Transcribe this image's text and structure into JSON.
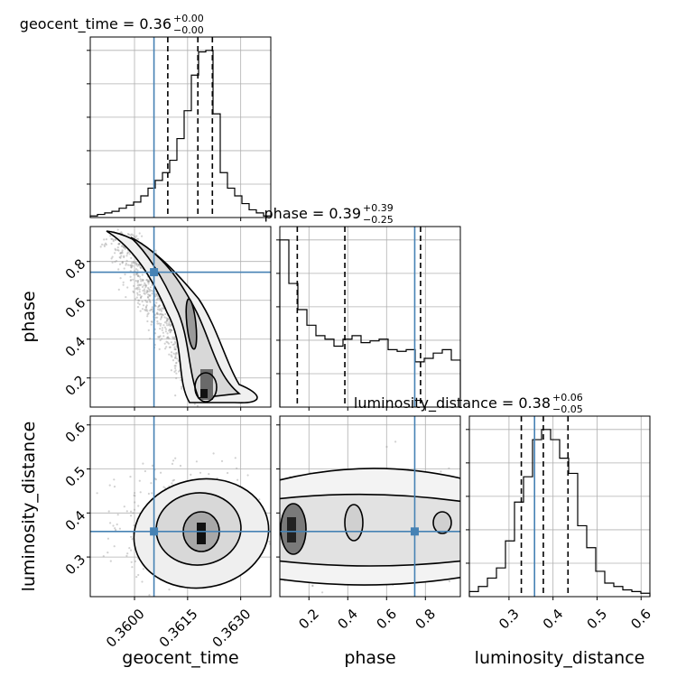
{
  "chart_data": {
    "type": "corner",
    "parameters": [
      "geocent_time",
      "phase",
      "luminosity_distance"
    ],
    "titles": [
      {
        "param": "geocent_time",
        "text": "geocent_time = 0.36",
        "sup": "+0.00",
        "sub": "−0.00"
      },
      {
        "param": "phase",
        "text": "phase = 0.39",
        "sup": "+0.39",
        "sub": "−0.25"
      },
      {
        "param": "luminosity_distance",
        "text": "luminosity_distance = 0.38",
        "sup": "+0.06",
        "sub": "−0.05"
      }
    ],
    "axis_labels": {
      "x": [
        "geocent_time",
        "phase",
        "luminosity_distance"
      ],
      "y": [
        "phase",
        "luminosity_distance"
      ]
    },
    "ranges": [
      [
        0.35875,
        0.36385
      ],
      [
        0.05,
        0.98
      ],
      [
        0.21,
        0.62
      ]
    ],
    "ticks": {
      "geocent_time": [
        {
          "v": 0.36,
          "label": "0.3600"
        },
        {
          "v": 0.3615,
          "label": "0.3615"
        },
        {
          "v": 0.363,
          "label": "0.3630"
        }
      ],
      "phase": [
        {
          "v": 0.2,
          "label": "0.2"
        },
        {
          "v": 0.4,
          "label": "0.4"
        },
        {
          "v": 0.6,
          "label": "0.6"
        },
        {
          "v": 0.8,
          "label": "0.8"
        }
      ],
      "luminosity_distance": [
        {
          "v": 0.3,
          "label": "0.3"
        },
        {
          "v": 0.4,
          "label": "0.4"
        },
        {
          "v": 0.5,
          "label": "0.5"
        },
        {
          "v": 0.6,
          "label": "0.6"
        }
      ]
    },
    "truth": {
      "geocent_time": 0.36055,
      "phase": 0.745,
      "luminosity_distance": 0.358
    },
    "quantiles": {
      "geocent_time": [
        0.36094,
        0.36179,
        0.3622
      ],
      "phase": [
        0.14,
        0.385,
        0.775
      ],
      "luminosity_distance": [
        0.328,
        0.378,
        0.434
      ]
    },
    "histograms": {
      "geocent_time": {
        "edges_range": [
          0.35875,
          0.36385
        ],
        "counts": [
          1,
          2,
          3,
          4,
          6,
          8,
          10,
          14,
          19,
          24,
          29,
          37,
          51,
          69,
          92,
          107,
          108,
          67,
          29,
          19,
          14,
          9,
          5,
          3,
          1
        ]
      },
      "phase": {
        "edges_range": [
          0.05,
          0.98
        ],
        "counts": [
          96,
          71,
          56,
          47,
          41,
          39,
          35,
          39,
          41,
          37,
          38,
          39,
          33,
          32,
          33,
          26,
          28,
          31,
          33,
          27
        ]
      },
      "luminosity_distance": {
        "edges_range": [
          0.21,
          0.62
        ],
        "counts": [
          3,
          6,
          11,
          17,
          33,
          56,
          71,
          93,
          99,
          93,
          82,
          73,
          42,
          29,
          15,
          8,
          6,
          4,
          3,
          2
        ]
      }
    },
    "grid": true,
    "colors": {
      "truth": "#4682b4",
      "contour": "#000000",
      "scatter": "#808080"
    }
  }
}
